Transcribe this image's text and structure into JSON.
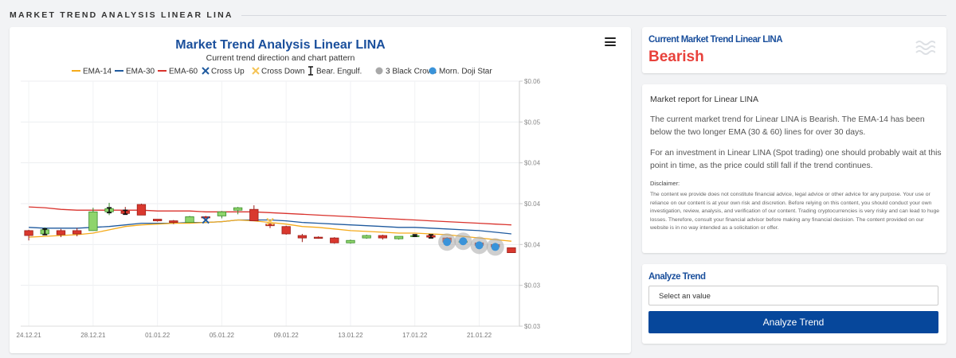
{
  "page": {
    "header": "MARKET TREND ANALYSIS LINEAR LINA"
  },
  "trend_card": {
    "title": "Current Market Trend Linear LINA",
    "value": "Bearish"
  },
  "report": {
    "title": "Market report for Linear LINA",
    "p1": "The current market trend for Linear LINA is Bearish. The EMA-14 has been below the two longer EMA (30 & 60) lines for over 30 days.",
    "p2": "For an investment in Linear LINA (Spot trading) one should probably wait at this point in time, as the price could still fall if the trend continues.",
    "disclaimer_title": "Disclaimer:",
    "disclaimer": "The content we provide does not constitute financial advice, legal advice or other advice for any purpose. Your use or reliance on our content is at your own risk and discretion. Before relying on this content, you should conduct your own investigation, review, analysis, and verification of our content. Trading cryptocurrencies is very risky and can lead to huge losses. Therefore, consult your financial advisor before making any financial decision. The content provided on our website is in no way intended as a solicitation or offer."
  },
  "analyze": {
    "title": "Analyze Trend",
    "select_value": "Select an value",
    "button": "Analyze Trend"
  },
  "chart_data": {
    "type": "candlestick",
    "title": "Market Trend Analysis Linear LINA",
    "subtitle": "Current trend direction and chart pattern",
    "y_axis": {
      "position": "right",
      "ticks": [
        "$0.06",
        "$0.05",
        "$0.04",
        "$0.04",
        "$0.04",
        "$0.03",
        "$0.03"
      ],
      "range": [
        0.03,
        0.06
      ]
    },
    "x_ticks": [
      "24.12.21",
      "28.12.21",
      "01.01.22",
      "05.01.22",
      "09.01.22",
      "13.01.22",
      "17.01.22",
      "21.01.22"
    ],
    "legend": [
      {
        "name": "EMA-14",
        "type": "line",
        "color": "#f5ab1b"
      },
      {
        "name": "EMA-30",
        "type": "line",
        "color": "#1f5a9e"
      },
      {
        "name": "EMA-60",
        "type": "line",
        "color": "#d9322c"
      },
      {
        "name": "Cross Up",
        "type": "cross",
        "color": "#1f5a9e"
      },
      {
        "name": "Cross Down",
        "type": "cross",
        "color": "#f5c355"
      },
      {
        "name": "Bear. Engulf.",
        "type": "ibeam",
        "color": "#111111"
      },
      {
        "name": "3 Black Crows",
        "type": "dot",
        "color": "#a8a8a8"
      },
      {
        "name": "Morn. Doji Star",
        "type": "dot",
        "color": "#3a93d9"
      }
    ],
    "candles": [
      {
        "day": 0,
        "open": 0.0417,
        "close": 0.0411,
        "high": 0.0418,
        "low": 0.0405
      },
      {
        "day": 1,
        "open": 0.0413,
        "close": 0.0418,
        "high": 0.0421,
        "low": 0.0412
      },
      {
        "day": 2,
        "open": 0.0417,
        "close": 0.0412,
        "high": 0.0419,
        "low": 0.0409
      },
      {
        "day": 3,
        "open": 0.0417,
        "close": 0.0413,
        "high": 0.042,
        "low": 0.041
      },
      {
        "day": 4,
        "open": 0.0417,
        "close": 0.044,
        "high": 0.0445,
        "low": 0.0417
      },
      {
        "day": 5,
        "open": 0.044,
        "close": 0.0444,
        "high": 0.0451,
        "low": 0.0436
      },
      {
        "day": 6,
        "open": 0.0441,
        "close": 0.0438,
        "high": 0.0446,
        "low": 0.0438
      },
      {
        "day": 7,
        "open": 0.0449,
        "close": 0.0436,
        "high": 0.045,
        "low": 0.0436
      },
      {
        "day": 8,
        "open": 0.0431,
        "close": 0.0429,
        "high": 0.0431,
        "low": 0.0428
      },
      {
        "day": 9,
        "open": 0.0429,
        "close": 0.0427,
        "high": 0.043,
        "low": 0.0425
      },
      {
        "day": 10,
        "open": 0.0427,
        "close": 0.0434,
        "high": 0.0435,
        "low": 0.0427
      },
      {
        "day": 11,
        "open": 0.0434,
        "close": 0.0433,
        "high": 0.0435,
        "low": 0.0432
      },
      {
        "day": 12,
        "open": 0.0435,
        "close": 0.044,
        "high": 0.0441,
        "low": 0.0432
      },
      {
        "day": 13,
        "open": 0.0442,
        "close": 0.0445,
        "high": 0.0446,
        "low": 0.0437
      },
      {
        "day": 14,
        "open": 0.0443,
        "close": 0.0429,
        "high": 0.0448,
        "low": 0.0429
      },
      {
        "day": 15,
        "open": 0.0425,
        "close": 0.0423,
        "high": 0.0426,
        "low": 0.042
      },
      {
        "day": 16,
        "open": 0.0422,
        "close": 0.0413,
        "high": 0.0423,
        "low": 0.0412
      },
      {
        "day": 17,
        "open": 0.0411,
        "close": 0.0408,
        "high": 0.0413,
        "low": 0.0403
      },
      {
        "day": 18,
        "open": 0.0409,
        "close": 0.0408,
        "high": 0.041,
        "low": 0.0407
      },
      {
        "day": 19,
        "open": 0.0408,
        "close": 0.0402,
        "high": 0.0409,
        "low": 0.0401
      },
      {
        "day": 20,
        "open": 0.0402,
        "close": 0.0405,
        "high": 0.0406,
        "low": 0.0401
      },
      {
        "day": 21,
        "open": 0.0408,
        "close": 0.0411,
        "high": 0.0412,
        "low": 0.0407
      },
      {
        "day": 22,
        "open": 0.0411,
        "close": 0.0408,
        "high": 0.0412,
        "low": 0.0406
      },
      {
        "day": 23,
        "open": 0.0407,
        "close": 0.041,
        "high": 0.041,
        "low": 0.0406
      },
      {
        "day": 24,
        "open": 0.0411,
        "close": 0.0411,
        "high": 0.0412,
        "low": 0.041
      },
      {
        "day": 25,
        "open": 0.0411,
        "close": 0.0409,
        "high": 0.0412,
        "low": 0.0409
      },
      {
        "day": 26,
        "open": 0.0408,
        "close": 0.0403,
        "high": 0.0409,
        "low": 0.0402
      },
      {
        "day": 27,
        "open": 0.0404,
        "close": 0.0404,
        "high": 0.0405,
        "low": 0.0402
      },
      {
        "day": 28,
        "open": 0.0402,
        "close": 0.0399,
        "high": 0.0403,
        "low": 0.0398
      },
      {
        "day": 29,
        "open": 0.04,
        "close": 0.0397,
        "high": 0.0402,
        "low": 0.0396
      },
      {
        "day": 30,
        "open": 0.0396,
        "close": 0.039,
        "high": 0.0396,
        "low": 0.039
      }
    ],
    "ema14": [
      0.0409,
      0.041,
      0.0411,
      0.0412,
      0.0414,
      0.0418,
      0.0422,
      0.0424,
      0.0425,
      0.0426,
      0.0426,
      0.0427,
      0.0428,
      0.043,
      0.0429,
      0.0427,
      0.0425,
      0.0422,
      0.0421,
      0.0419,
      0.0417,
      0.0416,
      0.0415,
      0.0414,
      0.0414,
      0.0413,
      0.0412,
      0.041,
      0.0408,
      0.0406,
      0.0404
    ],
    "ema30": [
      0.0421,
      0.042,
      0.042,
      0.042,
      0.0421,
      0.0422,
      0.0424,
      0.0426,
      0.0426,
      0.0426,
      0.0427,
      0.0427,
      0.0428,
      0.043,
      0.043,
      0.043,
      0.0429,
      0.0427,
      0.0426,
      0.0425,
      0.0424,
      0.0423,
      0.0422,
      0.0421,
      0.0421,
      0.042,
      0.0419,
      0.0418,
      0.0417,
      0.0415,
      0.0413
    ],
    "ema60": [
      0.0446,
      0.0445,
      0.0443,
      0.0442,
      0.0442,
      0.0442,
      0.0442,
      0.0442,
      0.0441,
      0.0441,
      0.0441,
      0.044,
      0.044,
      0.044,
      0.044,
      0.0439,
      0.0438,
      0.0437,
      0.0436,
      0.0435,
      0.0434,
      0.0433,
      0.0432,
      0.0431,
      0.043,
      0.0429,
      0.0428,
      0.0427,
      0.0426,
      0.0425,
      0.0424
    ],
    "cross_up": [
      {
        "day": 11,
        "price": 0.043
      }
    ],
    "cross_down": [
      {
        "day": 15,
        "price": 0.0428
      }
    ],
    "bear_engulf": [
      1,
      5,
      6,
      24,
      25
    ],
    "three_black_crows": [
      26,
      27,
      28,
      29
    ],
    "morning_doji_star": [
      26,
      27,
      28,
      29
    ]
  }
}
